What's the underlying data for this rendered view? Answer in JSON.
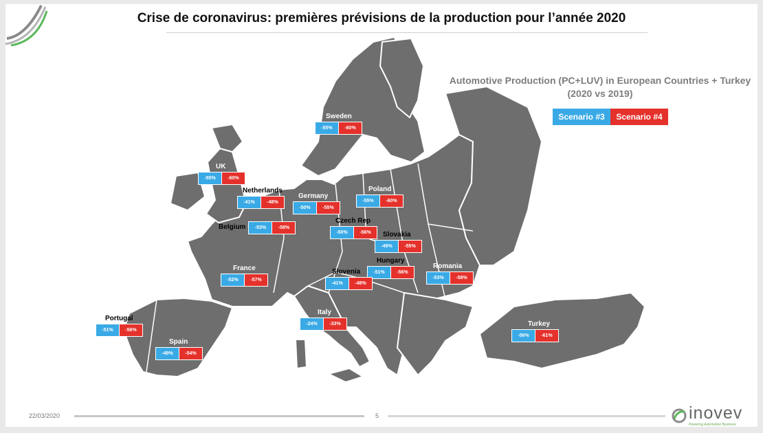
{
  "title": "Crise de coronavirus: premières prévisions de la production pour l’année 2020",
  "legend": {
    "title_line1": "Automotive Production (PC+LUV) in European Countries + Turkey",
    "title_line2": "(2020 vs 2019)",
    "scenario3_label": "Scenario #3",
    "scenario4_label": "Scenario #4",
    "scenario3_color": "#3aaae6",
    "scenario4_color": "#e5312b"
  },
  "map_colors": {
    "land": "#6e6e6e",
    "border": "#ffffff"
  },
  "countries": [
    {
      "name": "Sweden",
      "s3": "-55%",
      "s4": "-60%"
    },
    {
      "name": "UK",
      "s3": "-55%",
      "s4": "-60%"
    },
    {
      "name": "Netherlands",
      "s3": "-41%",
      "s4": "-48%"
    },
    {
      "name": "Germany",
      "s3": "-50%",
      "s4": "-55%"
    },
    {
      "name": "Poland",
      "s3": "-55%",
      "s4": "-60%"
    },
    {
      "name": "Belgium",
      "s3": "-53%",
      "s4": "-58%"
    },
    {
      "name": "Czech Rep",
      "s3": "-50%",
      "s4": "-56%"
    },
    {
      "name": "Slovakia",
      "s3": "-49%",
      "s4": "-55%"
    },
    {
      "name": "Hungary",
      "s3": "-51%",
      "s4": "-56%"
    },
    {
      "name": "Romania",
      "s3": "-53%",
      "s4": "-58%"
    },
    {
      "name": "France",
      "s3": "-52%",
      "s4": "-57%"
    },
    {
      "name": "Slovenia",
      "s3": "-41%",
      "s4": "-48%"
    },
    {
      "name": "Italy",
      "s3": "-24%",
      "s4": "-33%"
    },
    {
      "name": "Portugal",
      "s3": "-51%",
      "s4": "-56%"
    },
    {
      "name": "Spain",
      "s3": "-49%",
      "s4": "-54%"
    },
    {
      "name": "Turkey",
      "s3": "-56%",
      "s4": "-61%"
    }
  ],
  "footer": {
    "date": "22/03/2020",
    "page": "5",
    "logo_text": "inovev",
    "logo_tagline": "Powering Automotive Business"
  }
}
